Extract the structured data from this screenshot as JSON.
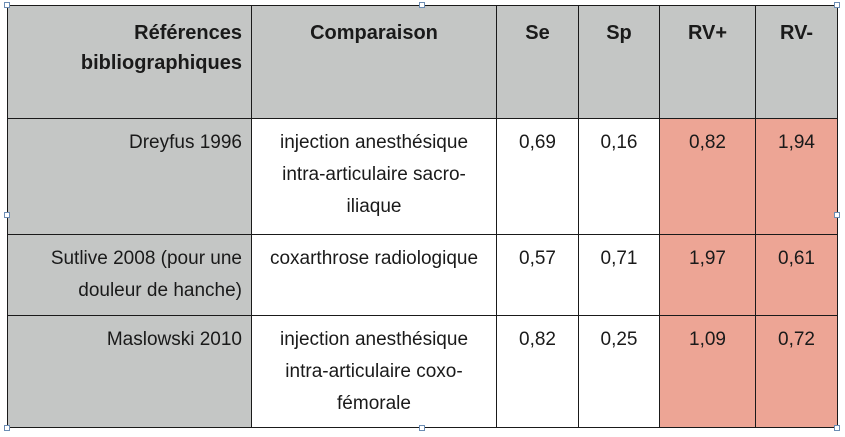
{
  "table": {
    "headers": {
      "references": "Références bibliographiques",
      "comparaison": "Comparaison",
      "se": "Se",
      "sp": "Sp",
      "rv_plus": "RV+",
      "rv_minus": "RV-"
    },
    "rows": [
      {
        "reference": "Dreyfus 1996",
        "comparaison": "injection anesthésique intra-articulaire sacro-iliaque",
        "se": "0,69",
        "sp": "0,16",
        "rv_plus": "0,82",
        "rv_minus": "1,94"
      },
      {
        "reference": "Sutlive 2008 (pour une douleur de hanche)",
        "comparaison": "coxarthrose radiologique",
        "se": "0,57",
        "sp": "0,71",
        "rv_plus": "1,97",
        "rv_minus": "0,61"
      },
      {
        "reference": "Maslowski 2010",
        "comparaison": "injection anesthésique intra-articulaire coxo-fémorale",
        "se": "0,82",
        "sp": "0,25",
        "rv_plus": "1,09",
        "rv_minus": "0,72"
      }
    ],
    "colors": {
      "header_bg": "#c4c6c5",
      "highlight_bg": "#eda595",
      "border": "#1a1a1a"
    }
  }
}
